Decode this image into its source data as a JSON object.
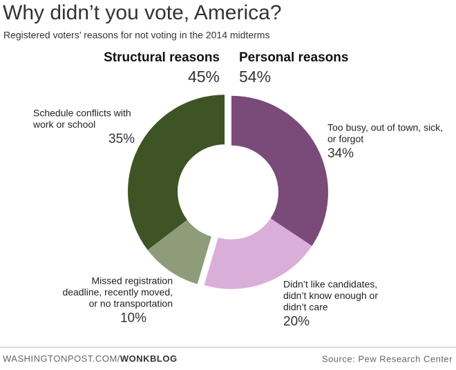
{
  "chart_data": {
    "type": "donut",
    "title": "Why didn’t you vote, America?",
    "subtitle": "Registered voters’ reasons for not voting in the 2014 midterms",
    "groups": [
      {
        "name": "Personal reasons",
        "value": 54,
        "value_label": "54%",
        "slices": [
          {
            "label_lines": [
              "Too busy, out of town, sick,",
              "or forgot"
            ],
            "value": 34,
            "value_label": "34%",
            "color": "#7a4b78"
          },
          {
            "label_lines": [
              "Didn’t like candidates,",
              "didn’t know enough or",
              "didn’t care"
            ],
            "value": 20,
            "value_label": "20%",
            "color": "#d9afd9"
          }
        ]
      },
      {
        "name": "Structural reasons",
        "value": 45,
        "value_label": "45%",
        "slices": [
          {
            "label_lines": [
              "Missed registration",
              "deadline, recently moved,",
              "or no transportation"
            ],
            "value": 10,
            "value_label": "10%",
            "color": "#8e9c79"
          },
          {
            "label_lines": [
              "Schedule conflicts with",
              "work or school"
            ],
            "value": 35,
            "value_label": "35%",
            "color": "#3e5424"
          }
        ]
      }
    ],
    "footer_site": "WASHINGTONPOST.COM/",
    "footer_blog": "WONKBLOG",
    "source": "Source: Pew Research Center"
  }
}
